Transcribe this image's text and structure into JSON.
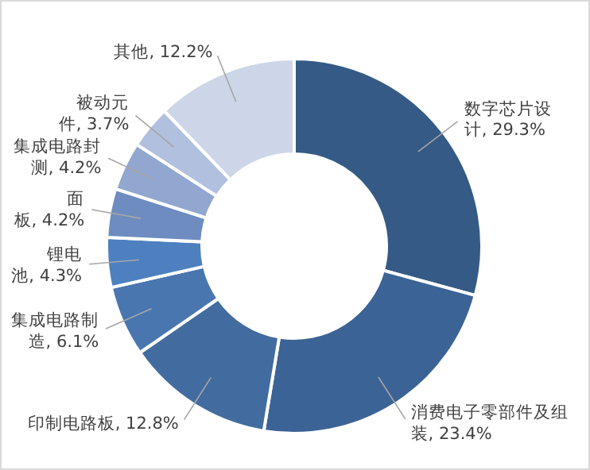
{
  "chart_data": {
    "type": "donut",
    "categories": [
      "数字芯片设计",
      "消费电子零部件及组装",
      "印制电路板",
      "集成电路制造",
      "锂电池",
      "面板",
      "集成电路封测",
      "被动元件",
      "其他"
    ],
    "values": [
      29.3,
      23.4,
      12.8,
      6.1,
      4.3,
      4.2,
      4.2,
      3.7,
      12.2
    ],
    "value_labels": [
      "29.3%",
      "23.4%",
      "12.8%",
      "6.1%",
      "4.3%",
      "4.2%",
      "4.2%",
      "3.7%",
      "12.2%"
    ],
    "colors": [
      "#355a85",
      "#3c6395",
      "#426c9f",
      "#4a76b0",
      "#4e80c0",
      "#6e8cc0",
      "#91a7cf",
      "#b1c0de",
      "#cdd6e8"
    ]
  }
}
